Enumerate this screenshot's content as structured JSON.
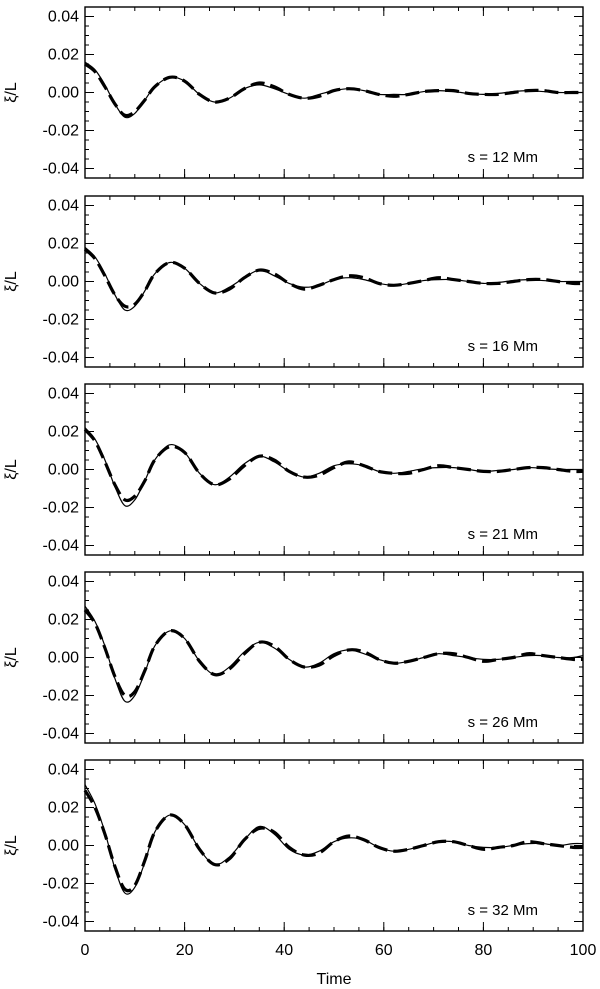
{
  "chart_data": {
    "type": "line",
    "xlabel": "Time",
    "ylabel": "ξ/L",
    "xlim": [
      0,
      100
    ],
    "ylim": [
      -0.045,
      0.045
    ],
    "x_ticks": [
      "0",
      "20",
      "40",
      "60",
      "80",
      "100"
    ],
    "x_tick_values": [
      0,
      20,
      40,
      60,
      80,
      100
    ],
    "y_ticks": [
      "0.04",
      "0.02",
      "0.00",
      "-0.02",
      "-0.04"
    ],
    "y_tick_values": [
      0.04,
      0.02,
      0.0,
      -0.02,
      -0.04
    ],
    "line_styles": {
      "solid": "thin solid",
      "dashed": "thick dashed"
    },
    "panels": [
      {
        "label": "s = 12 Mm",
        "series": [
          {
            "style": "solid",
            "x": [
              0,
              2,
              4,
              6,
              8,
              10,
              12,
              14,
              17,
              20,
              23,
              26,
              29,
              32,
              35,
              38,
              41,
              44,
              47,
              50,
              53,
              56,
              59,
              62,
              65,
              68,
              71,
              74,
              77,
              80,
              83,
              86,
              89,
              92,
              95,
              98,
              100
            ],
            "y": [
              0.016,
              0.012,
              0.004,
              -0.006,
              -0.013,
              -0.011,
              -0.004,
              0.003,
              0.008,
              0.006,
              -0.001,
              -0.005,
              -0.003,
              0.002,
              0.004,
              0.002,
              -0.001,
              -0.003,
              -0.001,
              0.001,
              0.002,
              0.001,
              -0.001,
              -0.001,
              -0.001,
              0.0005,
              0.001,
              0.0005,
              -0.0005,
              -0.001,
              -0.0005,
              0.0005,
              0.001,
              0.0005,
              0.0,
              0.0,
              0.0
            ]
          },
          {
            "style": "dashed",
            "x": [
              0,
              2,
              4,
              6,
              8,
              10,
              12,
              14,
              17,
              20,
              23,
              26,
              29,
              32,
              35,
              38,
              41,
              44,
              47,
              50,
              53,
              56,
              59,
              62,
              65,
              68,
              71,
              74,
              77,
              80,
              83,
              86,
              89,
              92,
              95,
              98,
              100
            ],
            "y": [
              0.015,
              0.011,
              0.003,
              -0.006,
              -0.012,
              -0.01,
              -0.004,
              0.003,
              0.008,
              0.006,
              -0.001,
              -0.005,
              -0.003,
              0.002,
              0.005,
              0.003,
              -0.001,
              -0.003,
              -0.002,
              0.001,
              0.002,
              0.001,
              -0.001,
              -0.002,
              -0.001,
              0.0005,
              0.001,
              0.001,
              -0.0005,
              -0.001,
              -0.001,
              0.0,
              0.001,
              0.001,
              0.0,
              0.0,
              0.0
            ]
          }
        ]
      },
      {
        "label": "s = 16 Mm",
        "series": [
          {
            "style": "solid",
            "x": [
              0,
              2,
              4,
              6,
              8,
              10,
              12,
              14,
              17,
              20,
              23,
              26,
              29,
              32,
              35,
              38,
              41,
              44,
              47,
              50,
              53,
              56,
              59,
              62,
              65,
              68,
              71,
              74,
              77,
              80,
              83,
              86,
              89,
              92,
              95,
              98,
              100
            ],
            "y": [
              0.018,
              0.013,
              0.004,
              -0.007,
              -0.015,
              -0.013,
              -0.005,
              0.004,
              0.01,
              0.007,
              -0.001,
              -0.006,
              -0.003,
              0.002,
              0.006,
              0.003,
              -0.001,
              -0.003,
              -0.002,
              0.001,
              0.002,
              0.001,
              -0.001,
              -0.002,
              -0.001,
              0.0005,
              0.001,
              0.001,
              0.0,
              -0.001,
              -0.0005,
              0.0005,
              0.001,
              0.0005,
              0.0,
              0.0,
              0.0
            ]
          },
          {
            "style": "dashed",
            "x": [
              0,
              2,
              4,
              6,
              8,
              10,
              12,
              14,
              17,
              20,
              23,
              26,
              29,
              32,
              35,
              38,
              41,
              44,
              47,
              50,
              53,
              56,
              59,
              62,
              65,
              68,
              71,
              74,
              77,
              80,
              83,
              86,
              89,
              92,
              95,
              98,
              100
            ],
            "y": [
              0.017,
              0.012,
              0.003,
              -0.007,
              -0.013,
              -0.012,
              -0.005,
              0.004,
              0.01,
              0.007,
              -0.001,
              -0.006,
              -0.004,
              0.002,
              0.006,
              0.004,
              -0.001,
              -0.004,
              -0.002,
              0.001,
              0.003,
              0.002,
              -0.001,
              -0.002,
              -0.001,
              0.0005,
              0.002,
              0.001,
              0.0,
              -0.001,
              -0.001,
              0.0,
              0.001,
              0.001,
              0.0,
              -0.001,
              -0.001
            ]
          }
        ]
      },
      {
        "label": "s = 21 Mm",
        "series": [
          {
            "style": "solid",
            "x": [
              0,
              2,
              4,
              6,
              8,
              10,
              12,
              14,
              17,
              20,
              23,
              26,
              29,
              32,
              35,
              38,
              41,
              44,
              47,
              50,
              53,
              56,
              59,
              62,
              65,
              68,
              71,
              74,
              77,
              80,
              83,
              86,
              89,
              92,
              95,
              98,
              100
            ],
            "y": [
              0.022,
              0.016,
              0.005,
              -0.009,
              -0.019,
              -0.016,
              -0.006,
              0.005,
              0.013,
              0.009,
              -0.002,
              -0.008,
              -0.004,
              0.003,
              0.007,
              0.004,
              -0.001,
              -0.004,
              -0.002,
              0.002,
              0.003,
              0.002,
              -0.001,
              -0.002,
              -0.001,
              0.0005,
              0.001,
              0.001,
              0.0,
              -0.001,
              -0.0005,
              0.0,
              0.001,
              0.0005,
              0.0,
              0.0,
              0.0
            ]
          },
          {
            "style": "dashed",
            "x": [
              0,
              2,
              4,
              6,
              8,
              10,
              12,
              14,
              17,
              20,
              23,
              26,
              29,
              32,
              35,
              38,
              41,
              44,
              47,
              50,
              53,
              56,
              59,
              62,
              65,
              68,
              71,
              74,
              77,
              80,
              83,
              86,
              89,
              92,
              95,
              98,
              100
            ],
            "y": [
              0.021,
              0.015,
              0.004,
              -0.008,
              -0.016,
              -0.014,
              -0.006,
              0.005,
              0.012,
              0.009,
              -0.002,
              -0.008,
              -0.005,
              0.002,
              0.007,
              0.005,
              -0.001,
              -0.004,
              -0.003,
              0.001,
              0.004,
              0.002,
              -0.001,
              -0.002,
              -0.002,
              0.0,
              0.002,
              0.001,
              0.0,
              -0.001,
              -0.001,
              0.0,
              0.001,
              0.001,
              0.0,
              -0.001,
              -0.001
            ]
          }
        ]
      },
      {
        "label": "s = 26 Mm",
        "series": [
          {
            "style": "solid",
            "x": [
              0,
              2,
              4,
              6,
              8,
              10,
              12,
              14,
              17,
              20,
              23,
              26,
              29,
              32,
              35,
              38,
              41,
              44,
              47,
              50,
              53,
              56,
              59,
              62,
              65,
              68,
              71,
              74,
              77,
              80,
              83,
              86,
              89,
              92,
              95,
              98,
              100
            ],
            "y": [
              0.027,
              0.019,
              0.006,
              -0.011,
              -0.023,
              -0.02,
              -0.008,
              0.006,
              0.014,
              0.01,
              -0.002,
              -0.009,
              -0.005,
              0.003,
              0.008,
              0.005,
              -0.001,
              -0.005,
              -0.003,
              0.002,
              0.004,
              0.002,
              -0.001,
              -0.003,
              -0.002,
              0.0,
              0.002,
              0.001,
              0.0,
              -0.001,
              -0.001,
              0.0,
              0.001,
              0.001,
              0.0,
              0.0,
              0.001
            ]
          },
          {
            "style": "dashed",
            "x": [
              0,
              2,
              4,
              6,
              8,
              10,
              12,
              14,
              17,
              20,
              23,
              26,
              29,
              32,
              35,
              38,
              41,
              44,
              47,
              50,
              53,
              56,
              59,
              62,
              65,
              68,
              71,
              74,
              77,
              80,
              83,
              86,
              89,
              92,
              95,
              98,
              100
            ],
            "y": [
              0.025,
              0.018,
              0.005,
              -0.01,
              -0.02,
              -0.018,
              -0.007,
              0.006,
              0.014,
              0.01,
              -0.002,
              -0.009,
              -0.006,
              0.002,
              0.008,
              0.006,
              -0.001,
              -0.005,
              -0.004,
              0.001,
              0.004,
              0.003,
              -0.001,
              -0.003,
              -0.002,
              0.0,
              0.002,
              0.002,
              0.0,
              -0.002,
              -0.001,
              0.0,
              0.002,
              0.001,
              0.0,
              -0.001,
              -0.001
            ]
          }
        ]
      },
      {
        "label": "s = 32 Mm",
        "series": [
          {
            "style": "solid",
            "x": [
              0,
              2,
              4,
              6,
              8,
              10,
              12,
              14,
              17,
              20,
              23,
              26,
              29,
              32,
              35,
              38,
              41,
              44,
              47,
              50,
              53,
              56,
              59,
              62,
              65,
              68,
              71,
              74,
              77,
              80,
              83,
              86,
              89,
              92,
              95,
              98,
              100
            ],
            "y": [
              0.032,
              0.022,
              0.007,
              -0.012,
              -0.025,
              -0.022,
              -0.009,
              0.007,
              0.016,
              0.011,
              -0.002,
              -0.01,
              -0.006,
              0.003,
              0.01,
              0.006,
              -0.002,
              -0.005,
              -0.003,
              0.002,
              0.004,
              0.003,
              -0.001,
              -0.003,
              -0.002,
              0.0,
              0.002,
              0.002,
              0.0,
              -0.001,
              -0.001,
              0.0,
              0.001,
              0.001,
              0.0,
              0.001,
              0.001
            ]
          },
          {
            "style": "dashed",
            "x": [
              0,
              2,
              4,
              6,
              8,
              10,
              12,
              14,
              17,
              20,
              23,
              26,
              29,
              32,
              35,
              38,
              41,
              44,
              47,
              50,
              53,
              56,
              59,
              62,
              65,
              68,
              71,
              74,
              77,
              80,
              83,
              86,
              89,
              92,
              95,
              98,
              100
            ],
            "y": [
              0.029,
              0.02,
              0.006,
              -0.011,
              -0.023,
              -0.021,
              -0.008,
              0.007,
              0.016,
              0.011,
              -0.002,
              -0.01,
              -0.007,
              0.003,
              0.009,
              0.007,
              -0.001,
              -0.005,
              -0.004,
              0.002,
              0.005,
              0.003,
              -0.001,
              -0.003,
              -0.002,
              0.0,
              0.002,
              0.002,
              0.0,
              -0.002,
              -0.001,
              0.0,
              0.002,
              0.001,
              0.0,
              -0.001,
              -0.001
            ]
          }
        ]
      }
    ]
  }
}
